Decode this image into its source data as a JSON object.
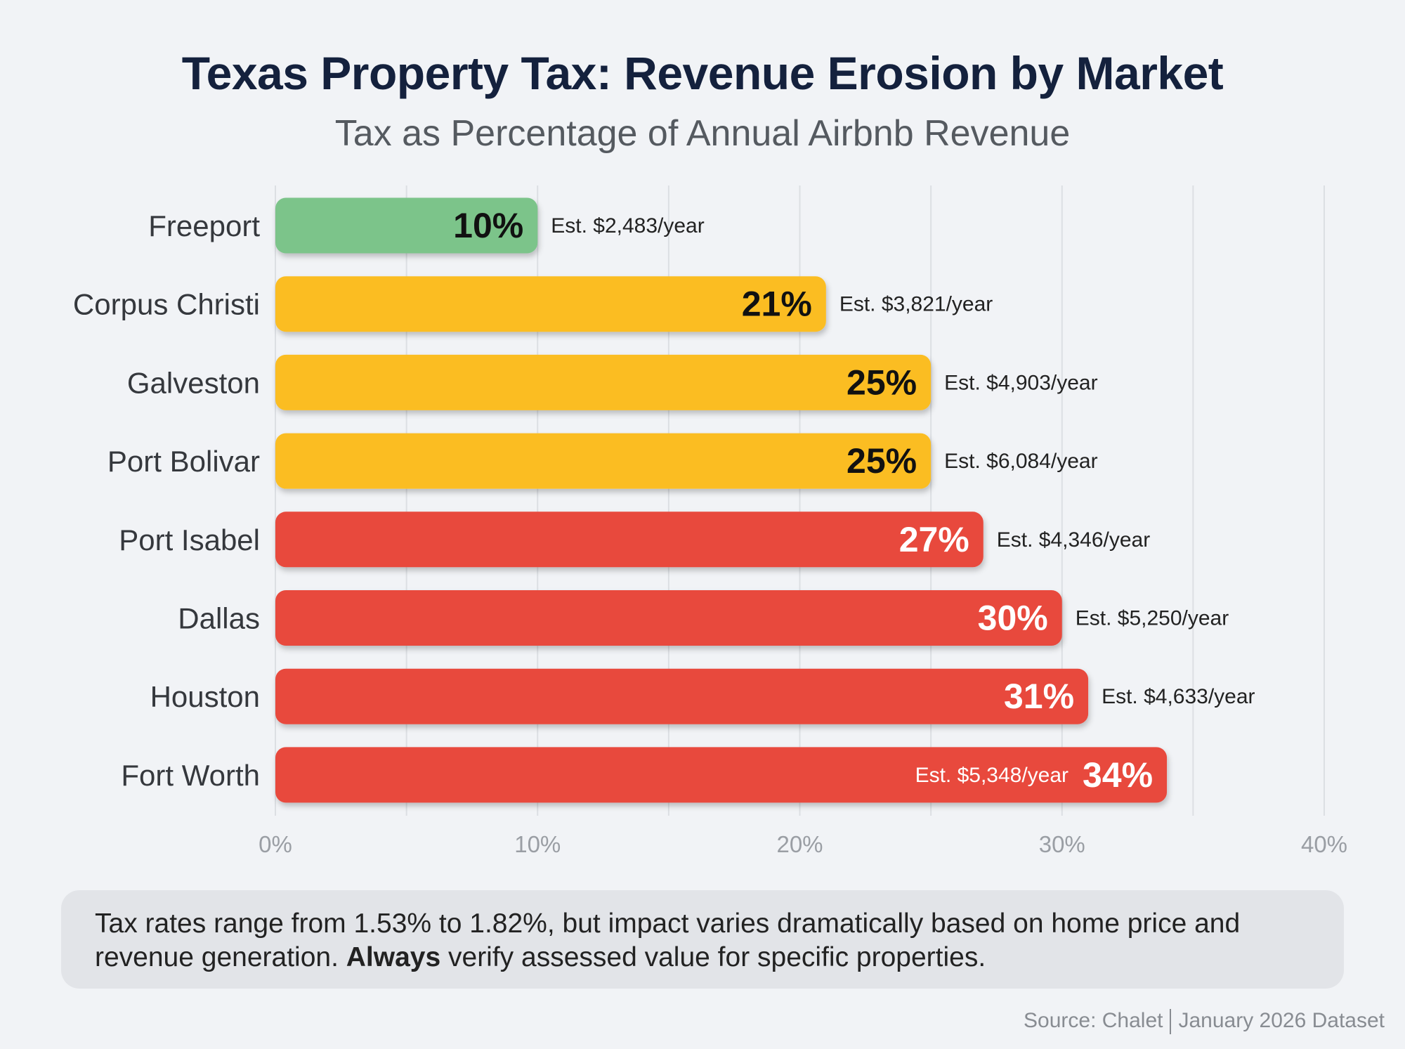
{
  "chart_data": {
    "type": "bar",
    "orientation": "horizontal",
    "title": "Texas Property Tax: Revenue Erosion by Market",
    "subtitle": "Tax as Percentage of Annual Airbnb Revenue",
    "xlabel": "",
    "ylabel": "",
    "xlim": [
      0,
      40
    ],
    "x_ticks": [
      "0%",
      "10%",
      "20%",
      "30%",
      "40%"
    ],
    "grid": true,
    "categories": [
      "Freeport",
      "Corpus Christi",
      "Galveston",
      "Port Bolivar",
      "Port Isabel",
      "Dallas",
      "Houston",
      "Fort Worth"
    ],
    "values": [
      10,
      21,
      25,
      25,
      27,
      30,
      31,
      34
    ],
    "value_labels": [
      "10%",
      "21%",
      "25%",
      "25%",
      "27%",
      "30%",
      "31%",
      "34%"
    ],
    "annotations": [
      "Est. $2,483/year",
      "Est. $3,821/year",
      "Est. $4,903/year",
      "Est. $6,084/year",
      "Est. $4,346/year",
      "Est. $5,250/year",
      "Est. $4,633/year",
      "Est. $5,348/year"
    ],
    "bar_colors": [
      "#7cc48a",
      "#fbbd23",
      "#fbbd23",
      "#fbbd23",
      "#e84a3c",
      "#e84a3c",
      "#e84a3c",
      "#e84a3c"
    ]
  },
  "note": {
    "text_before": "Tax rates range from 1.53% to 1.82%, but impact varies dramatically based on home price and revenue generation. ",
    "bold": "Always",
    "text_after": " verify assessed value for specific properties."
  },
  "source": {
    "left": "Source: Chalet",
    "right": "January 2026 Dataset"
  }
}
